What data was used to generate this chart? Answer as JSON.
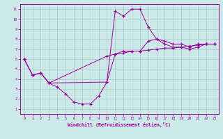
{
  "xlabel": "Windchill (Refroidissement éolien,°C)",
  "background_color": "#cce8e8",
  "grid_color": "#aacccc",
  "line_color": "#990099",
  "xlim": [
    -0.5,
    23.5
  ],
  "ylim": [
    0.5,
    11.5
  ],
  "xticks": [
    0,
    1,
    2,
    3,
    4,
    5,
    6,
    7,
    8,
    9,
    10,
    11,
    12,
    13,
    14,
    15,
    16,
    17,
    18,
    19,
    20,
    21,
    22,
    23
  ],
  "yticks": [
    1,
    2,
    3,
    4,
    5,
    6,
    7,
    8,
    9,
    10,
    11
  ],
  "curve_top": {
    "x": [
      0,
      1,
      2,
      3,
      10,
      11,
      12,
      13,
      14,
      15,
      16,
      17,
      18,
      19,
      20,
      21,
      22,
      23
    ],
    "y": [
      6.0,
      4.4,
      4.6,
      3.6,
      3.7,
      10.8,
      10.3,
      11.0,
      11.0,
      9.2,
      8.0,
      7.8,
      7.5,
      7.5,
      7.2,
      7.5,
      7.5,
      7.5
    ]
  },
  "curve_mid": {
    "x": [
      0,
      1,
      2,
      3,
      10,
      11,
      12,
      13,
      14,
      15,
      16,
      17,
      18,
      19,
      20,
      21,
      22,
      23
    ],
    "y": [
      6.0,
      4.4,
      4.6,
      3.6,
      6.3,
      6.5,
      6.6,
      6.8,
      6.8,
      6.9,
      7.0,
      7.1,
      7.1,
      7.2,
      7.3,
      7.4,
      7.5,
      7.5
    ]
  },
  "curve_bot": {
    "x": [
      0,
      1,
      2,
      3,
      4,
      5,
      6,
      7,
      8,
      9,
      10,
      11,
      12,
      13,
      14,
      15,
      16,
      17,
      18,
      19,
      20,
      21,
      22,
      23
    ],
    "y": [
      6.0,
      4.4,
      4.6,
      3.6,
      3.2,
      2.5,
      1.7,
      1.5,
      1.5,
      2.3,
      3.7,
      6.5,
      6.8,
      6.8,
      6.8,
      7.8,
      8.0,
      7.5,
      7.2,
      7.2,
      7.0,
      7.2,
      7.5,
      7.5
    ]
  }
}
